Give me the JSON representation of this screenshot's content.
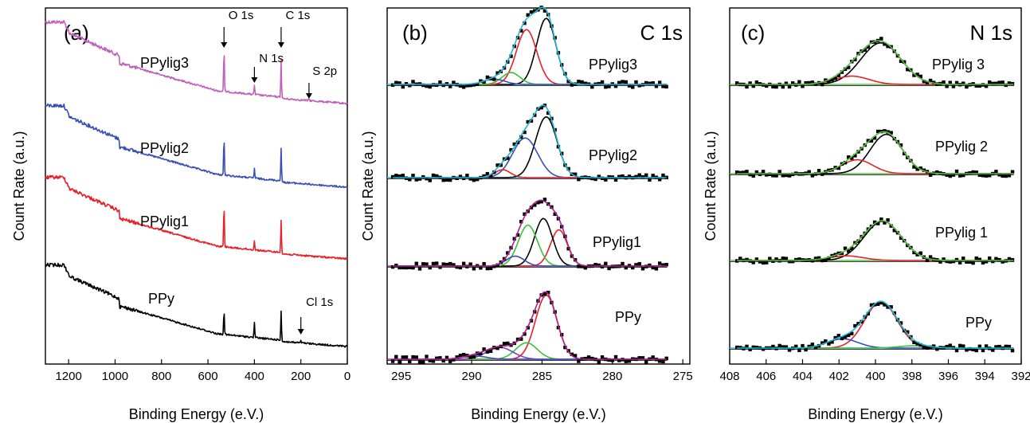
{
  "colors": {
    "ppy": "#000000",
    "ppylig1": "#e8202a",
    "ppylig2": "#3a4fb5",
    "ppylig3": "#c060b8",
    "fit_black": "#000000",
    "fit_red": "#e8202a",
    "fit_green": "#3cc03c",
    "fit_blue": "#3a4fb5",
    "fit_purple": "#7b3fc0",
    "baseline_cyan": "#21b8cf",
    "envelope_magenta": "#b0208a",
    "envelope_green": "#55c040"
  },
  "chart_data": [
    {
      "type": "line",
      "panel_label": "(a)",
      "xlabel": "Binding Energy (e.V.)",
      "ylabel": "Count Rate (a.u.)",
      "xlim": [
        1300,
        0
      ],
      "xticks": [
        1200,
        1000,
        800,
        600,
        400,
        200,
        0
      ],
      "grid": false,
      "series": [
        {
          "name": "PPylig3",
          "color_key": "ppylig3",
          "offset": 3,
          "peaks": [
            {
              "x": 531,
              "h": 1.1
            },
            {
              "x": 400,
              "h": 0.25
            },
            {
              "x": 285,
              "h": 1.0
            },
            {
              "x": 165,
              "h": 0.05
            }
          ]
        },
        {
          "name": "PPylig2",
          "color_key": "ppylig2",
          "offset": 2,
          "peaks": [
            {
              "x": 531,
              "h": 1.0
            },
            {
              "x": 400,
              "h": 0.25
            },
            {
              "x": 285,
              "h": 0.9
            }
          ]
        },
        {
          "name": "PPylig1",
          "color_key": "ppylig1",
          "offset": 1,
          "peaks": [
            {
              "x": 531,
              "h": 1.1
            },
            {
              "x": 400,
              "h": 0.25
            },
            {
              "x": 285,
              "h": 0.9
            }
          ]
        },
        {
          "name": "PPy",
          "color_key": "ppy",
          "offset": 0,
          "peaks": [
            {
              "x": 531,
              "h": 0.65
            },
            {
              "x": 400,
              "h": 0.4
            },
            {
              "x": 285,
              "h": 0.8
            },
            {
              "x": 200,
              "h": 0.05
            }
          ]
        }
      ],
      "annotations": [
        {
          "text": "O 1s",
          "x": 531,
          "series": "PPylig3"
        },
        {
          "text": "N 1s",
          "x": 400,
          "series": "PPylig3"
        },
        {
          "text": "C 1s",
          "x": 285,
          "series": "PPylig3"
        },
        {
          "text": "S 2p",
          "x": 165,
          "series": "PPylig3"
        },
        {
          "text": "Cl 1s",
          "x": 200,
          "series": "PPy"
        }
      ]
    },
    {
      "type": "scatter",
      "panel_label": "(b)",
      "spectrum_label": "C 1s",
      "xlabel": "Binding Energy (e.V.)",
      "ylabel": "Count Rate (a.u.)",
      "xlim": [
        296,
        274.5
      ],
      "xticks": [
        295,
        290,
        285,
        280,
        275
      ],
      "grid": false,
      "spectra": [
        {
          "name": "PPylig3",
          "envelope_color_key": "baseline_cyan",
          "components": [
            {
              "center": 284.7,
              "height": 1.0,
              "fwhm": 1.6,
              "color_key": "fit_black"
            },
            {
              "center": 286.1,
              "height": 0.83,
              "fwhm": 1.7,
              "color_key": "fit_red"
            },
            {
              "center": 287.2,
              "height": 0.18,
              "fwhm": 1.5,
              "color_key": "fit_green"
            },
            {
              "center": 288.4,
              "height": 0.08,
              "fwhm": 1.8,
              "color_key": "fit_blue"
            }
          ]
        },
        {
          "name": "PPylig2",
          "envelope_color_key": "baseline_cyan",
          "components": [
            {
              "center": 284.7,
              "height": 0.92,
              "fwhm": 1.8,
              "color_key": "fit_black"
            },
            {
              "center": 286.2,
              "height": 0.6,
              "fwhm": 2.1,
              "color_key": "fit_blue"
            },
            {
              "center": 287.8,
              "height": 0.12,
              "fwhm": 1.3,
              "color_key": "fit_red"
            }
          ]
        },
        {
          "name": "PPylig1",
          "envelope_color_key": "envelope_magenta",
          "components": [
            {
              "center": 283.8,
              "height": 0.55,
              "fwhm": 1.4,
              "color_key": "fit_red"
            },
            {
              "center": 284.9,
              "height": 0.72,
              "fwhm": 1.5,
              "color_key": "fit_black"
            },
            {
              "center": 286.0,
              "height": 0.62,
              "fwhm": 1.6,
              "color_key": "fit_green"
            },
            {
              "center": 286.9,
              "height": 0.15,
              "fwhm": 1.5,
              "color_key": "fit_blue"
            }
          ]
        },
        {
          "name": "PPy",
          "envelope_color_key": "envelope_magenta",
          "components": [
            {
              "center": 284.7,
              "height": 0.97,
              "fwhm": 1.8,
              "color_key": "fit_red"
            },
            {
              "center": 286.1,
              "height": 0.25,
              "fwhm": 1.8,
              "color_key": "fit_green"
            },
            {
              "center": 288.0,
              "height": 0.18,
              "fwhm": 2.2,
              "color_key": "fit_purple"
            },
            {
              "center": 289.8,
              "height": 0.05,
              "fwhm": 2.0,
              "color_key": "fit_blue"
            }
          ]
        }
      ]
    },
    {
      "type": "scatter",
      "panel_label": "(c)",
      "spectrum_label": "N 1s",
      "xlabel": "Binding Energy (e.V.)",
      "ylabel": "Count Rate (a.u.)",
      "xlim": [
        408,
        392
      ],
      "xticks": [
        408,
        406,
        404,
        402,
        400,
        398,
        396,
        394,
        392
      ],
      "grid": false,
      "spectra": [
        {
          "name": "PPylig 3",
          "envelope_color_key": "envelope_green",
          "components": [
            {
              "center": 399.7,
              "height": 0.9,
              "fwhm": 2.6,
              "color_key": "fit_black"
            },
            {
              "center": 401.3,
              "height": 0.18,
              "fwhm": 2.2,
              "color_key": "fit_red"
            }
          ]
        },
        {
          "name": "PPylig 2",
          "envelope_color_key": "envelope_green",
          "components": [
            {
              "center": 399.4,
              "height": 0.85,
              "fwhm": 2.1,
              "color_key": "fit_black"
            },
            {
              "center": 401.0,
              "height": 0.3,
              "fwhm": 2.0,
              "color_key": "fit_red"
            }
          ]
        },
        {
          "name": "PPylig 1",
          "envelope_color_key": "envelope_green",
          "components": [
            {
              "center": 399.6,
              "height": 0.85,
              "fwhm": 2.4,
              "color_key": "fit_black"
            },
            {
              "center": 401.6,
              "height": 0.1,
              "fwhm": 2.2,
              "color_key": "fit_red"
            }
          ]
        },
        {
          "name": "PPy",
          "envelope_color_key": "baseline_cyan",
          "components": [
            {
              "center": 399.7,
              "height": 1.0,
              "fwhm": 2.1,
              "color_key": "fit_red"
            },
            {
              "center": 401.8,
              "height": 0.2,
              "fwhm": 2.0,
              "color_key": "fit_blue"
            },
            {
              "center": 397.9,
              "height": 0.05,
              "fwhm": 2.0,
              "color_key": "fit_green"
            }
          ]
        }
      ]
    }
  ]
}
